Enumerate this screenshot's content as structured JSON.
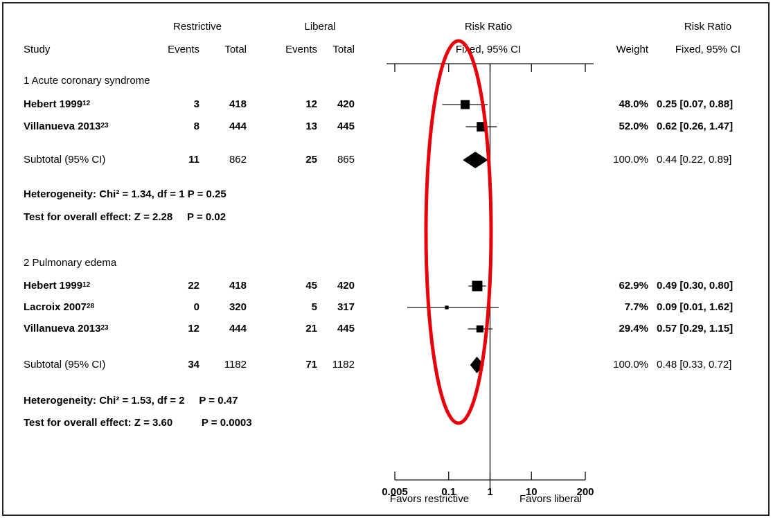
{
  "header": {
    "group1": "Restrictive",
    "group2": "Liberal",
    "plot_title": "Risk Ratio",
    "plot_subtitle": "Fixed, 95% CI",
    "study": "Study",
    "events": "Events",
    "total": "Total",
    "weight": "Weight",
    "rr_title": "Risk Ratio",
    "rr_subtitle": "Fixed, 95% CI"
  },
  "groups": [
    {
      "title": "1 Acute coronary syndrome",
      "studies": [
        {
          "name": "Hebert 1999",
          "ref": "12",
          "r_events": "3",
          "r_total": "418",
          "l_events": "12",
          "l_total": "420",
          "weight": "48.0%",
          "rr_text": "0.25 [0.07, 0.88]"
        },
        {
          "name": "Villanueva 2013",
          "ref": "23",
          "r_events": "8",
          "r_total": "444",
          "l_events": "13",
          "l_total": "445",
          "weight": "52.0%",
          "rr_text": "0.62 [0.26, 1.47]"
        }
      ],
      "subtotal": {
        "label": "Subtotal (95% CI)",
        "r_events": "11",
        "r_total": "862",
        "l_events": "25",
        "l_total": "865",
        "weight": "100.0%",
        "rr_text": "0.44 [0.22, 0.89]"
      },
      "heterogeneity": "Heterogeneity: Chi² = 1.34, df = 1 P = 0.25",
      "overall": "Test for overall effect: Z = 2.28     P = 0.02"
    },
    {
      "title": "2 Pulmonary edema",
      "studies": [
        {
          "name": "Hebert 1999",
          "ref": "12",
          "r_events": "22",
          "r_total": "418",
          "l_events": "45",
          "l_total": "420",
          "weight": "62.9%",
          "rr_text": "0.49 [0.30, 0.80]"
        },
        {
          "name": "Lacroix 2007",
          "ref": "28",
          "r_events": "0",
          "r_total": "320",
          "l_events": "5",
          "l_total": "317",
          "weight": "7.7%",
          "rr_text": "0.09 [0.01, 1.62]"
        },
        {
          "name": "Villanueva 2013",
          "ref": "23",
          "r_events": "12",
          "r_total": "444",
          "l_events": "21",
          "l_total": "445",
          "weight": "29.4%",
          "rr_text": "0.57 [0.29, 1.15]"
        }
      ],
      "subtotal": {
        "label": "Subtotal (95% CI)",
        "r_events": "34",
        "r_total": "1182",
        "l_events": "71",
        "l_total": "1182",
        "weight": "100.0%",
        "rr_text": "0.48 [0.33, 0.72]"
      },
      "heterogeneity": "Heterogeneity: Chi² = 1.53, df = 2     P = 0.47",
      "overall": "Test for overall effect: Z = 3.60          P = 0.0003"
    }
  ],
  "axis": {
    "ticks": [
      0.005,
      0.1,
      1,
      10,
      200
    ],
    "tick_labels": [
      "0.005",
      "0.1",
      "1",
      "10",
      "200"
    ],
    "favors_left": "Favors restrictive",
    "favors_right": "Favors liberal"
  },
  "chart_data": {
    "type": "forest",
    "scale": "log",
    "xlim": [
      0.005,
      200
    ],
    "null_line": 1,
    "series": [
      {
        "group": "1 Acute coronary syndrome",
        "study": "Hebert 1999",
        "rr": 0.25,
        "lo": 0.07,
        "hi": 0.88,
        "weight": 48.0
      },
      {
        "group": "1 Acute coronary syndrome",
        "study": "Villanueva 2013",
        "rr": 0.62,
        "lo": 0.26,
        "hi": 1.47,
        "weight": 52.0
      },
      {
        "group": "1 Acute coronary syndrome",
        "study": "Subtotal (95% CI)",
        "rr": 0.44,
        "lo": 0.22,
        "hi": 0.89,
        "weight": 100.0,
        "pooled": true
      },
      {
        "group": "2 Pulmonary edema",
        "study": "Hebert 1999",
        "rr": 0.49,
        "lo": 0.3,
        "hi": 0.8,
        "weight": 62.9
      },
      {
        "group": "2 Pulmonary edema",
        "study": "Lacroix 2007",
        "rr": 0.09,
        "lo": 0.01,
        "hi": 1.62,
        "weight": 7.7
      },
      {
        "group": "2 Pulmonary edema",
        "study": "Villanueva 2013",
        "rr": 0.57,
        "lo": 0.29,
        "hi": 1.15,
        "weight": 29.4
      },
      {
        "group": "2 Pulmonary edema",
        "study": "Subtotal (95% CI)",
        "rr": 0.48,
        "lo": 0.33,
        "hi": 0.72,
        "weight": 100.0,
        "pooled": true
      }
    ],
    "annotation_color": "#e8000b"
  }
}
